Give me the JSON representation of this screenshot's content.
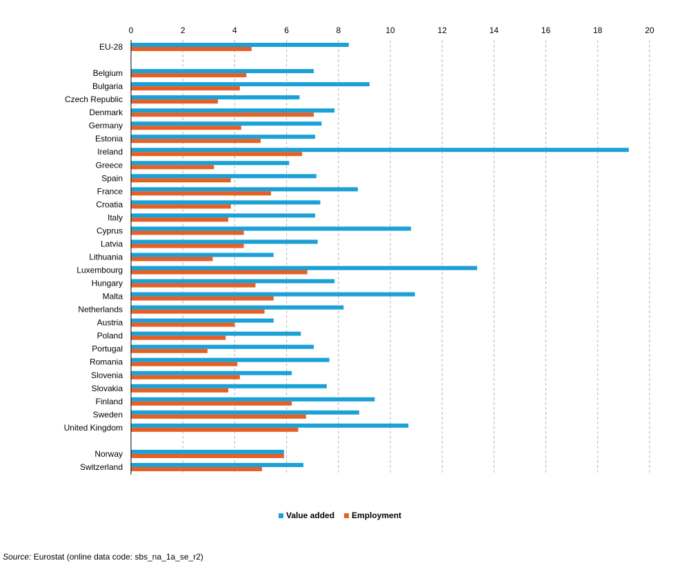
{
  "chart_data": {
    "type": "bar",
    "orientation": "horizontal",
    "xlim": [
      0,
      20
    ],
    "x_ticks": [
      0,
      2,
      4,
      6,
      8,
      10,
      12,
      14,
      16,
      18,
      20
    ],
    "grid": "vertical dashed",
    "legend_position": "bottom",
    "categories": [
      "EU-28",
      "",
      "Belgium",
      "Bulgaria",
      "Czech Republic",
      "Denmark",
      "Germany",
      "Estonia",
      "Ireland",
      "Greece",
      "Spain",
      "France",
      "Croatia",
      "Italy",
      "Cyprus",
      "Latvia",
      "Lithuania",
      "Luxembourg",
      "Hungary",
      "Malta",
      "Netherlands",
      "Austria",
      "Poland",
      "Portugal",
      "Romania",
      "Slovenia",
      "Slovakia",
      "Finland",
      "Sweden",
      "United Kingdom",
      "",
      "Norway",
      "Switzerland"
    ],
    "series": [
      {
        "name": "Value added",
        "color": "#1ba1d6",
        "values": [
          8.4,
          null,
          7.05,
          9.2,
          6.5,
          7.85,
          7.35,
          7.1,
          19.2,
          6.1,
          7.15,
          8.75,
          7.3,
          7.1,
          10.8,
          7.2,
          5.5,
          13.35,
          7.85,
          10.95,
          8.2,
          5.5,
          6.55,
          7.05,
          7.65,
          6.2,
          7.55,
          9.4,
          8.8,
          10.7,
          null,
          5.9,
          6.65
        ]
      },
      {
        "name": "Employment",
        "color": "#e65f25",
        "values": [
          4.65,
          null,
          4.45,
          4.2,
          3.35,
          7.05,
          4.25,
          5.0,
          6.6,
          3.2,
          3.85,
          5.4,
          3.85,
          3.75,
          4.35,
          4.35,
          3.15,
          6.8,
          4.8,
          5.5,
          5.15,
          4.0,
          3.65,
          2.95,
          4.1,
          4.2,
          3.75,
          6.2,
          6.75,
          6.45,
          null,
          5.9,
          5.05
        ]
      }
    ]
  },
  "legend": {
    "value_added": "Value added",
    "employment": "Employment"
  },
  "source": {
    "label": "Source:",
    "text": " Eurostat (online data code: sbs_na_1a_se_r2)"
  }
}
